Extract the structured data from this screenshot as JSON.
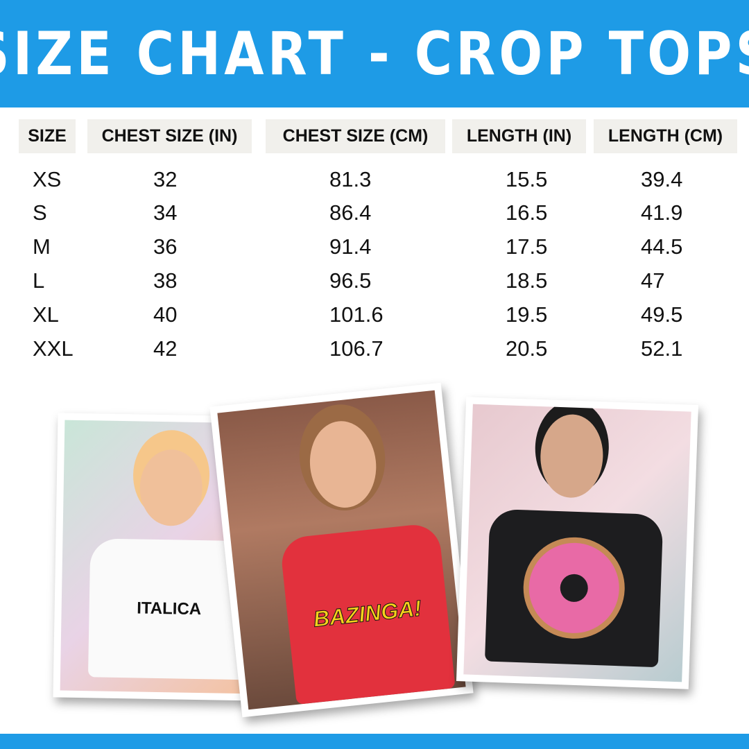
{
  "title": "SIZE CHART - CROP TOPS",
  "colors": {
    "brand_blue": "#1e9be6",
    "header_cell_bg": "#f1f0ec"
  },
  "table": {
    "headers": [
      "SIZE",
      "CHEST SIZE (IN)",
      "CHEST SIZE (CM)",
      "LENGTH (IN)",
      "LENGTH (CM)"
    ],
    "rows": [
      [
        "XS",
        "32",
        "81.3",
        "15.5",
        "39.4"
      ],
      [
        "S",
        "34",
        "86.4",
        "16.5",
        "41.9"
      ],
      [
        "M",
        "36",
        "91.4",
        "17.5",
        "44.5"
      ],
      [
        "L",
        "38",
        "96.5",
        "18.5",
        "47"
      ],
      [
        "XL",
        "40",
        "101.6",
        "19.5",
        "49.5"
      ],
      [
        "XXL",
        "42",
        "106.7",
        "20.5",
        "52.1"
      ]
    ]
  },
  "photos": [
    {
      "shirt_print": "ITALICA"
    },
    {
      "shirt_print": "BAZINGA!"
    },
    {
      "shirt_print": ""
    }
  ]
}
